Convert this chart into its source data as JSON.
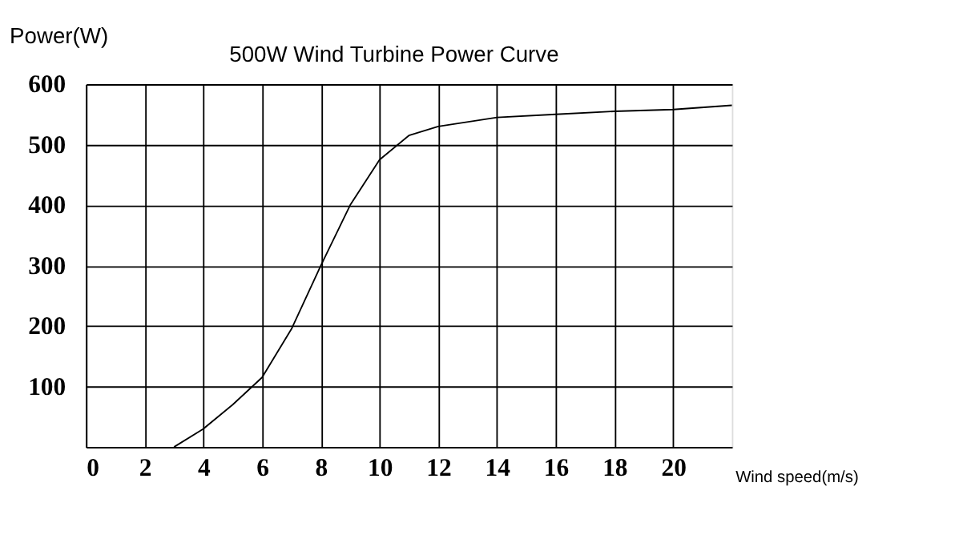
{
  "chart_data": {
    "type": "line",
    "title": "500W Wind Turbine Power Curve",
    "xlabel": "Wind speed(m/s)",
    "ylabel": "Power(W)",
    "x": [
      3,
      4,
      5,
      6,
      7,
      8,
      9,
      10,
      11,
      12,
      14,
      16,
      18,
      20,
      22
    ],
    "series": [
      {
        "color": "#000000",
        "values": [
          0,
          30,
          70,
          115,
          195,
          300,
          400,
          475,
          515,
          530,
          545,
          550,
          555,
          558,
          565
        ]
      }
    ],
    "xlim": [
      0,
      22
    ],
    "xticks": [
      0,
      2,
      4,
      6,
      8,
      10,
      12,
      14,
      16,
      18,
      20
    ],
    "ylim": [
      0,
      600
    ],
    "yticks": [
      100,
      200,
      300,
      400,
      500,
      600
    ],
    "grid": true,
    "marker": "none",
    "line_style": "solid"
  }
}
